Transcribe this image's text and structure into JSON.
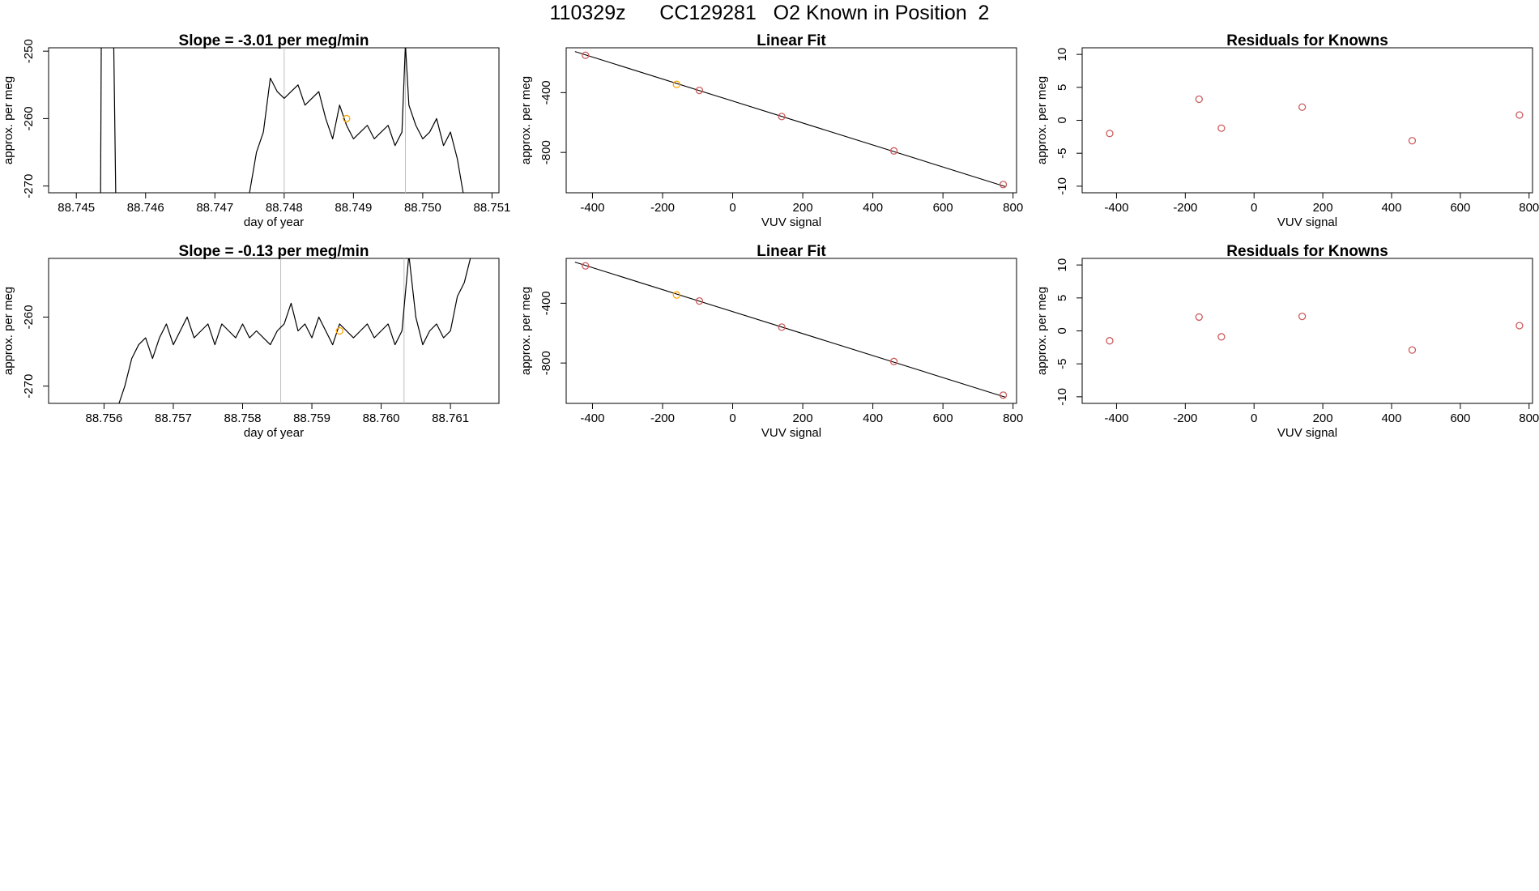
{
  "page_title": "110329z      CC129281   O2 Known in Position  2",
  "colors": {
    "line": "#000000",
    "frame": "#000000",
    "point": "#cd5c5c",
    "highlight": "#ffa500",
    "vline": "#bebebe"
  },
  "chart_data": [
    {
      "id": "ts1",
      "type": "line",
      "title": "Slope =  -3.01  per meg/min",
      "xlabel": "day of year",
      "ylabel": "approx. per meg",
      "xlim": [
        88.7446,
        88.7511
      ],
      "ylim": [
        -271,
        -249.5
      ],
      "xticks": [
        88.745,
        88.746,
        88.747,
        88.748,
        88.749,
        88.75,
        88.751
      ],
      "xtick_labels": [
        "88.745",
        "88.746",
        "88.747",
        "88.748",
        "88.749",
        "88.750",
        "88.751"
      ],
      "yticks": [
        -270,
        -260,
        -250
      ],
      "ytick_labels": [
        "-270",
        "-260",
        "-250"
      ],
      "vlines": [
        88.748,
        88.74975
      ],
      "highlight_point": {
        "x": 88.7489,
        "y": -260
      },
      "segments": [
        [
          [
            88.74535,
            -272
          ],
          [
            88.74536,
            -249
          ]
        ],
        [
          [
            88.74554,
            -249
          ],
          [
            88.74557,
            -272
          ]
        ]
      ],
      "series": {
        "start": 88.7475,
        "end": 88.7506,
        "step": 4e-05,
        "x": [
          88.7475,
          88.7476,
          88.7477,
          88.7478,
          88.7479,
          88.748,
          88.7481,
          88.7482,
          88.7483,
          88.7484,
          88.7485,
          88.7486,
          88.7487,
          88.7488,
          88.7489,
          88.749,
          88.7491,
          88.7492,
          88.7493,
          88.7494,
          88.7495,
          88.7496,
          88.7497,
          88.74975,
          88.7498,
          88.7499,
          88.75,
          88.7501,
          88.7502,
          88.7503,
          88.7504,
          88.7505,
          88.7506
        ],
        "y": [
          -271,
          -265,
          -262,
          -254,
          -256,
          -257,
          -256,
          -255,
          -258,
          -257,
          -256,
          -260,
          -263,
          -258,
          -261,
          -263,
          -262,
          -261,
          -263,
          -262,
          -261,
          -264,
          -262,
          -249,
          -258,
          -261,
          -263,
          -262,
          -260,
          -264,
          -262,
          -266,
          -272
        ]
      }
    },
    {
      "id": "ts2",
      "type": "line",
      "title": "Slope =  -0.13  per meg/min",
      "xlabel": "day of year",
      "ylabel": "approx. per meg",
      "xlim": [
        88.7552,
        88.7617
      ],
      "ylim": [
        -272.5,
        -251.5
      ],
      "xticks": [
        88.756,
        88.757,
        88.758,
        88.759,
        88.76,
        88.761
      ],
      "xtick_labels": [
        "88.756",
        "88.757",
        "88.758",
        "88.759",
        "88.760",
        "88.761"
      ],
      "yticks": [
        -270,
        -260
      ],
      "ytick_labels": [
        "-270",
        "-260"
      ],
      "vlines": [
        88.75855,
        88.76033
      ],
      "highlight_point": {
        "x": 88.7594,
        "y": -262
      },
      "segments": [],
      "series": {
        "start": 88.7562,
        "end": 88.7613,
        "step": 4e-05,
        "x": [
          88.7562,
          88.7563,
          88.7564,
          88.7565,
          88.7566,
          88.7567,
          88.7568,
          88.7569,
          88.757,
          88.7571,
          88.7572,
          88.7573,
          88.7574,
          88.7575,
          88.7576,
          88.7577,
          88.7578,
          88.7579,
          88.758,
          88.7581,
          88.7582,
          88.7583,
          88.7584,
          88.7585,
          88.7586,
          88.7587,
          88.7588,
          88.7589,
          88.759,
          88.7591,
          88.7592,
          88.7593,
          88.7594,
          88.7595,
          88.7596,
          88.7597,
          88.7598,
          88.7599,
          88.76,
          88.7601,
          88.7602,
          88.7603,
          88.7604,
          88.7605,
          88.7606,
          88.7607,
          88.7608,
          88.7609,
          88.761,
          88.7611,
          88.7612,
          88.7613
        ],
        "y": [
          -273,
          -270,
          -266,
          -264,
          -263,
          -266,
          -263,
          -261,
          -264,
          -262,
          -260,
          -263,
          -262,
          -261,
          -264,
          -261,
          -262,
          -263,
          -261,
          -263,
          -262,
          -263,
          -264,
          -262,
          -261,
          -258,
          -262,
          -261,
          -263,
          -260,
          -262,
          -264,
          -261,
          -262,
          -263,
          -262,
          -261,
          -263,
          -262,
          -261,
          -264,
          -262,
          -251,
          -260,
          -264,
          -262,
          -261,
          -263,
          -262,
          -257,
          -255,
          -251
        ]
      }
    },
    {
      "id": "fit1",
      "type": "scatter",
      "title": "Linear Fit",
      "xlabel": "VUV signal",
      "ylabel": "approx. per meg",
      "xlim": [
        -475,
        810
      ],
      "ylim": [
        -1070,
        -100
      ],
      "xticks": [
        -400,
        -200,
        0,
        200,
        400,
        600,
        800
      ],
      "xtick_labels": [
        "-400",
        "-200",
        "0",
        "200",
        "400",
        "600",
        "800"
      ],
      "yticks": [
        -800,
        -400
      ],
      "ytick_labels": [
        "-800",
        "-400"
      ],
      "points": [
        [
          -420,
          -150
        ],
        [
          -160,
          -345
        ],
        [
          -95,
          -385
        ],
        [
          140,
          -560
        ],
        [
          460,
          -790
        ],
        [
          772,
          -1015
        ]
      ],
      "highlight_index": 1,
      "fit_line": [
        [
          -450,
          -125
        ],
        [
          780,
          -1030
        ]
      ]
    },
    {
      "id": "res1",
      "type": "scatter",
      "title": "Residuals for Knowns",
      "xlabel": "VUV signal",
      "ylabel": "approx. per meg",
      "xlim": [
        -500,
        810
      ],
      "ylim": [
        -11,
        11
      ],
      "xticks": [
        -400,
        -200,
        0,
        200,
        400,
        600,
        800
      ],
      "xtick_labels": [
        "-400",
        "-200",
        "0",
        "200",
        "400",
        "600",
        "800"
      ],
      "yticks": [
        -10,
        -5,
        0,
        5,
        10
      ],
      "ytick_labels": [
        "-10",
        "-5",
        "0",
        "5",
        "10"
      ],
      "points": [
        [
          -420,
          -2
        ],
        [
          -160,
          3.2
        ],
        [
          -95,
          -1.2
        ],
        [
          140,
          2
        ],
        [
          460,
          -3.1
        ],
        [
          772,
          0.8
        ]
      ]
    },
    {
      "id": "fit2",
      "type": "scatter",
      "title": "Linear Fit",
      "xlabel": "VUV signal",
      "ylabel": "approx. per meg",
      "xlim": [
        -475,
        810
      ],
      "ylim": [
        -1070,
        -100
      ],
      "xticks": [
        -400,
        -200,
        0,
        200,
        400,
        600,
        800
      ],
      "xtick_labels": [
        "-400",
        "-200",
        "0",
        "200",
        "400",
        "600",
        "800"
      ],
      "yticks": [
        -800,
        -400
      ],
      "ytick_labels": [
        "-800",
        "-400"
      ],
      "points": [
        [
          -420,
          -150
        ],
        [
          -160,
          -345
        ],
        [
          -95,
          -385
        ],
        [
          140,
          -560
        ],
        [
          460,
          -790
        ],
        [
          772,
          -1015
        ]
      ],
      "highlight_index": 1,
      "fit_line": [
        [
          -450,
          -125
        ],
        [
          780,
          -1030
        ]
      ]
    },
    {
      "id": "res2",
      "type": "scatter",
      "title": "Residuals for Knowns",
      "xlabel": "VUV signal",
      "ylabel": "approx. per meg",
      "xlim": [
        -500,
        810
      ],
      "ylim": [
        -11,
        11
      ],
      "xticks": [
        -400,
        -200,
        0,
        200,
        400,
        600,
        800
      ],
      "xtick_labels": [
        "-400",
        "-200",
        "0",
        "200",
        "400",
        "600",
        "800"
      ],
      "yticks": [
        -10,
        -5,
        0,
        5,
        10
      ],
      "ytick_labels": [
        "-10",
        "-5",
        "0",
        "5",
        "10"
      ],
      "points": [
        [
          -420,
          -1.5
        ],
        [
          -160,
          2.1
        ],
        [
          -95,
          -0.9
        ],
        [
          140,
          2.2
        ],
        [
          460,
          -2.9
        ],
        [
          772,
          0.8
        ]
      ]
    }
  ]
}
